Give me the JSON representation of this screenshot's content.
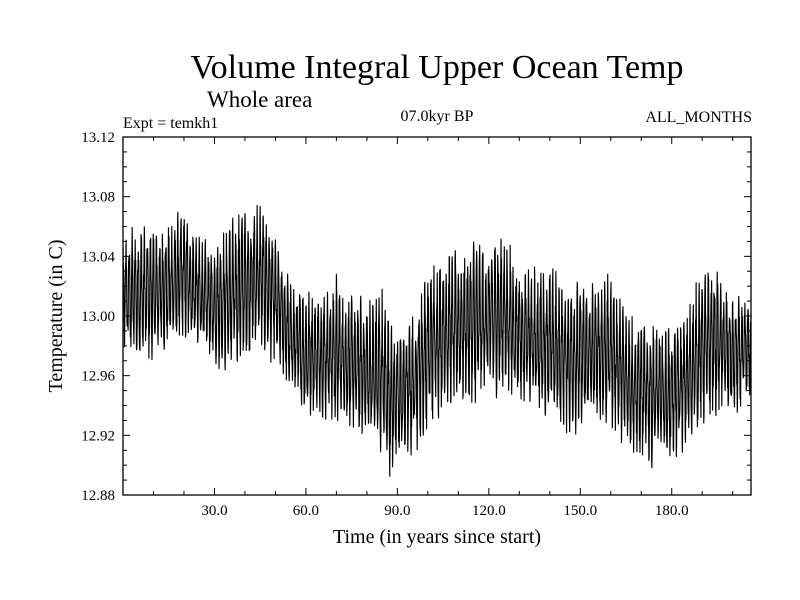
{
  "chart_data": {
    "type": "line",
    "title": "Volume Integral Upper Ocean Temp",
    "subtitle": "Whole area",
    "experiment": "Expt = temkh1",
    "period": "07.0kyr BP",
    "months": "ALL_MONTHS",
    "xlabel": "Time (in years since start)",
    "ylabel": "Temperature (in C)",
    "xlim": [
      0,
      206
    ],
    "ylim": [
      12.88,
      13.12
    ],
    "xticks": [
      30,
      60,
      90,
      120,
      150,
      180
    ],
    "xtick_labels": [
      "30.0",
      "60.0",
      "90.0",
      "120.0",
      "150.0",
      "180.0"
    ],
    "yticks": [
      12.88,
      12.92,
      12.96,
      13.0,
      13.04,
      13.08,
      13.12
    ],
    "ytick_labels": [
      "12.88",
      "12.92",
      "12.96",
      "13.00",
      "13.04",
      "13.08",
      "13.12"
    ],
    "sampling": "monthly",
    "color": "#000000",
    "series": [
      {
        "name": "upper ocean temperature",
        "description": "monthly values oscillating within an envelope",
        "x": [
          0,
          5,
          10,
          15,
          20,
          25,
          30,
          35,
          40,
          45,
          50,
          55,
          60,
          65,
          70,
          75,
          80,
          85,
          88,
          90,
          95,
          100,
          105,
          110,
          115,
          120,
          125,
          130,
          135,
          140,
          145,
          150,
          155,
          160,
          165,
          170,
          175,
          180,
          185,
          190,
          195,
          200,
          206
        ],
        "upper": [
          13.05,
          13.06,
          13.055,
          13.06,
          13.07,
          13.05,
          13.045,
          13.06,
          13.07,
          13.075,
          13.05,
          13.02,
          13.015,
          13.015,
          13.025,
          13.01,
          13.01,
          13.015,
          12.995,
          12.99,
          13.0,
          13.03,
          13.04,
          13.04,
          13.05,
          13.045,
          13.055,
          13.03,
          13.03,
          13.03,
          13.02,
          13.02,
          13.02,
          13.025,
          13.0,
          12.995,
          12.995,
          12.99,
          13.0,
          13.03,
          13.03,
          13.01,
          13.01
        ],
        "lower": [
          12.98,
          12.97,
          12.975,
          12.98,
          12.985,
          12.98,
          12.97,
          12.965,
          12.975,
          12.98,
          12.97,
          12.95,
          12.935,
          12.935,
          12.925,
          12.925,
          12.915,
          12.91,
          12.895,
          12.9,
          12.91,
          12.925,
          12.94,
          12.945,
          12.94,
          12.95,
          12.95,
          12.945,
          12.935,
          12.935,
          12.925,
          12.925,
          12.93,
          12.93,
          12.915,
          12.905,
          12.9,
          12.905,
          12.915,
          12.93,
          12.935,
          12.935,
          12.945
        ]
      }
    ]
  }
}
